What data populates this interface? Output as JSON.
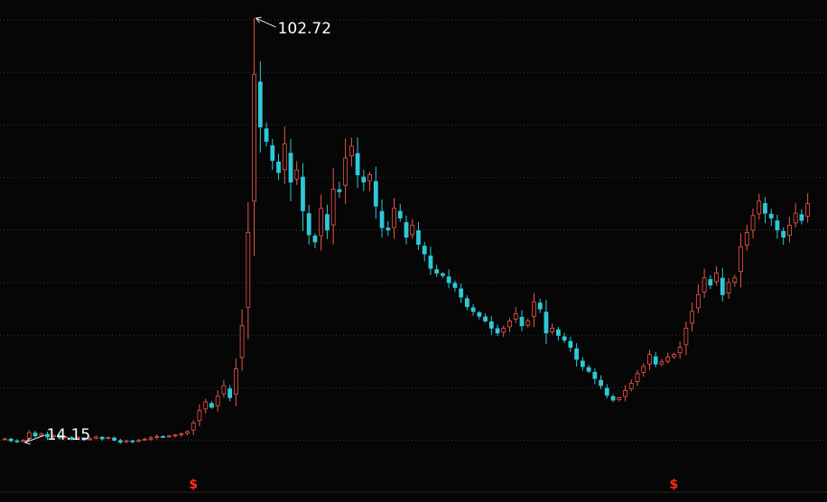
{
  "chart_data": {
    "type": "candlestick",
    "title": "",
    "xlabel": "",
    "ylabel": "",
    "grid": true,
    "colors": {
      "up": "#f0564a",
      "down": "#2fc8d8",
      "background": "#060606",
      "grid": "#3a3a3a",
      "dividend_marker": "#ff2a1a"
    },
    "ylim": [
      8.5,
      105
    ],
    "annotations": {
      "high": {
        "value": 102.72,
        "label": "102.72",
        "bar_index": 41
      },
      "low": {
        "value": 14.15,
        "label": "14.15",
        "bar_index": 3
      }
    },
    "dividend_markers": [
      {
        "label": "$",
        "bar_index": 31
      },
      {
        "label": "$",
        "bar_index": 110
      }
    ],
    "closes": [
      14.9,
      14.5,
      14.3,
      14.6,
      16.2,
      15.5,
      15.9,
      15.3,
      15.6,
      15.1,
      15.3,
      14.8,
      15.2,
      14.7,
      14.9,
      15.3,
      14.9,
      15.2,
      14.6,
      14.2,
      14.5,
      14.3,
      14.6,
      14.8,
      15.1,
      15.4,
      15.3,
      15.5,
      15.7,
      16.0,
      16.4,
      18.2,
      20.8,
      22.6,
      21.5,
      23.8,
      26.0,
      23.5,
      29.5,
      38.5,
      58.0,
      91.0,
      80.0,
      77.0,
      73.0,
      70.5,
      76.5,
      68.5,
      71.0,
      62.5,
      57.5,
      56.0,
      63.0,
      58.5,
      67.0,
      66.5,
      73.5,
      76.0,
      70.0,
      68.5,
      70.0,
      63.5,
      59.0,
      58.5,
      63.0,
      61.0,
      57.0,
      59.5,
      55.5,
      53.5,
      50.5,
      49.5,
      49.0,
      47.5,
      46.5,
      44.5,
      42.5,
      41.5,
      40.5,
      39.5,
      38.0,
      37.0,
      38.0,
      39.5,
      41.0,
      38.5,
      39.5,
      43.5,
      42.0,
      37.0,
      38.0,
      36.5,
      35.5,
      34.0,
      31.5,
      30.0,
      29.0,
      27.5,
      26.0,
      24.0,
      23.0,
      23.5,
      25.0,
      26.5,
      28.5,
      30.0,
      32.5,
      30.5,
      31.0,
      32.0,
      32.5,
      34.0,
      38.0,
      41.5,
      45.0,
      48.5,
      47.0,
      49.5,
      45.0,
      47.5,
      48.5,
      55.0,
      58.0,
      61.5,
      64.5,
      62.0,
      61.0,
      58.5,
      57.0,
      59.5,
      62.0,
      60.5,
      64.0
    ]
  }
}
